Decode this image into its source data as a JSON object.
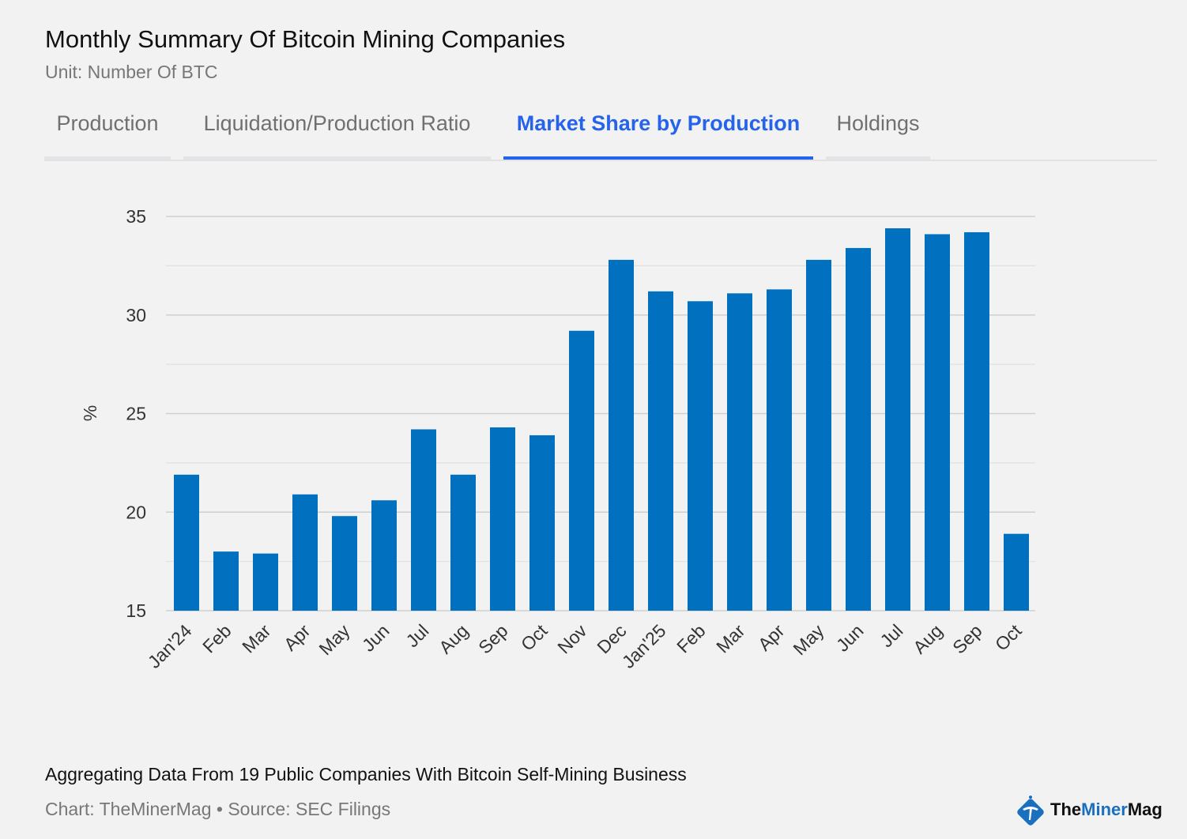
{
  "header": {
    "title": "Monthly Summary Of Bitcoin Mining Companies",
    "subtitle": "Unit: Number Of BTC"
  },
  "tabs": [
    {
      "label": "Production",
      "active": false
    },
    {
      "label": "Liquidation/Production Ratio",
      "active": false
    },
    {
      "label": "Market Share by Production",
      "active": true
    },
    {
      "label": "Holdings",
      "active": false
    }
  ],
  "chart_data": {
    "type": "bar",
    "title": "Market Share by Production",
    "xlabel": "",
    "ylabel": "%",
    "ylim": [
      15,
      35
    ],
    "yticks": [
      15,
      20,
      25,
      30,
      35
    ],
    "grid": true,
    "bar_color": "#0070bf",
    "categories": [
      "Jan'24",
      "Feb",
      "Mar",
      "Apr",
      "May",
      "Jun",
      "Jul",
      "Aug",
      "Sep",
      "Oct",
      "Nov",
      "Dec",
      "Jan'25",
      "Feb",
      "Mar",
      "Apr",
      "May",
      "Jun",
      "Jul",
      "Aug",
      "Sep",
      "Oct"
    ],
    "values": [
      21.9,
      18.0,
      17.9,
      20.9,
      19.8,
      20.6,
      24.2,
      21.9,
      24.3,
      23.9,
      29.2,
      32.8,
      31.2,
      30.7,
      31.1,
      31.3,
      32.8,
      33.4,
      34.4,
      34.1,
      34.2,
      18.9
    ]
  },
  "footer": {
    "note": "Aggregating Data From 19 Public Companies With Bitcoin Self-Mining Business",
    "source": "Chart: TheMinerMag • Source: SEC Filings"
  },
  "logo": {
    "text_a": "The",
    "text_b": "Miner",
    "text_c": "Mag"
  }
}
